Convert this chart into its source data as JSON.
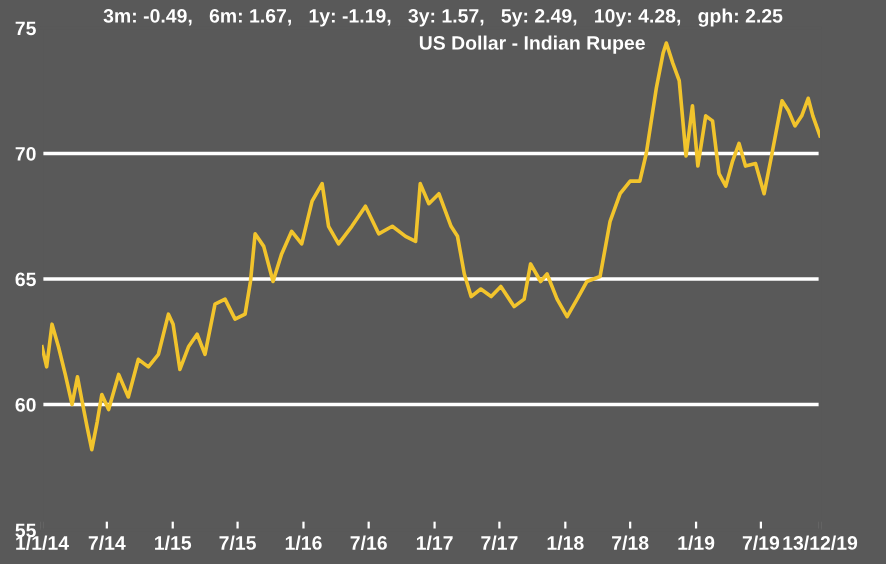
{
  "chart_data": {
    "type": "line",
    "title": "3m: -0.49,   6m: 1.67,   1y: -1.19,   3y: 1.57,   5y: 2.49,   10y: 4.28,   gph: 2.25",
    "subtitle": "US Dollar - Indian Rupee",
    "x": [
      "2014-01-01",
      "2014-01-14",
      "2014-01-29",
      "2014-02-16",
      "2014-03-07",
      "2014-03-26",
      "2014-04-10",
      "2014-04-22",
      "2014-05-07",
      "2014-05-20",
      "2014-06-04",
      "2014-06-17",
      "2014-07-06",
      "2014-08-03",
      "2014-08-30",
      "2014-09-27",
      "2014-10-25",
      "2014-11-22",
      "2014-12-20",
      "2015-01-02",
      "2015-01-21",
      "2015-02-14",
      "2015-03-10",
      "2015-04-01",
      "2015-04-29",
      "2015-05-27",
      "2015-06-24",
      "2015-07-22",
      "2015-08-06",
      "2015-08-19",
      "2015-09-12",
      "2015-10-08",
      "2015-11-01",
      "2015-11-29",
      "2015-12-27",
      "2016-01-25",
      "2016-02-22",
      "2016-03-11",
      "2016-04-08",
      "2016-05-15",
      "2016-06-22",
      "2016-07-29",
      "2016-09-05",
      "2016-10-12",
      "2016-11-09",
      "2016-11-22",
      "2016-12-16",
      "2017-01-13",
      "2017-02-16",
      "2017-03-06",
      "2017-03-25",
      "2017-04-13",
      "2017-05-10",
      "2017-06-08",
      "2017-07-05",
      "2017-08-11",
      "2017-09-08",
      "2017-09-26",
      "2017-10-24",
      "2017-11-11",
      "2017-12-09",
      "2018-01-06",
      "2018-02-03",
      "2018-03-02",
      "2018-04-08",
      "2018-05-06",
      "2018-06-03",
      "2018-07-01",
      "2018-07-28",
      "2018-08-15",
      "2018-09-12",
      "2018-10-01",
      "2018-10-10",
      "2018-10-28",
      "2018-11-15",
      "2018-12-04",
      "2018-12-22",
      "2019-01-06",
      "2019-01-28",
      "2019-02-16",
      "2019-03-06",
      "2019-03-25",
      "2019-04-13",
      "2019-05-01",
      "2019-05-19",
      "2019-06-16",
      "2019-07-10",
      "2019-08-01",
      "2019-08-29",
      "2019-09-16",
      "2019-10-04",
      "2019-10-23",
      "2019-11-10",
      "2019-11-23",
      "2019-12-13"
    ],
    "series": [
      {
        "color": "#f2c42c",
        "values": [
          62.3,
          61.5,
          63.2,
          62.3,
          61.2,
          60.0,
          61.1,
          60.2,
          59.1,
          58.2,
          59.3,
          60.4,
          59.8,
          61.2,
          60.3,
          61.8,
          61.5,
          62.0,
          63.6,
          63.2,
          61.4,
          62.3,
          62.8,
          62.0,
          64.0,
          64.2,
          63.4,
          63.6,
          64.9,
          66.8,
          66.3,
          64.9,
          66.0,
          66.9,
          66.4,
          68.1,
          68.8,
          67.1,
          66.4,
          67.1,
          67.9,
          66.8,
          67.1,
          66.7,
          66.5,
          68.8,
          68.0,
          68.4,
          67.1,
          66.7,
          65.2,
          64.3,
          64.6,
          64.3,
          64.7,
          63.9,
          64.2,
          65.6,
          64.9,
          65.2,
          64.2,
          63.5,
          64.2,
          64.9,
          65.1,
          67.3,
          68.4,
          68.9,
          68.9,
          70.0,
          72.6,
          74.0,
          74.4,
          73.6,
          72.9,
          69.9,
          71.9,
          69.5,
          71.5,
          71.3,
          69.2,
          68.7,
          69.7,
          70.4,
          69.5,
          69.6,
          68.4,
          70.0,
          72.1,
          71.7,
          71.1,
          71.5,
          72.2,
          71.5,
          70.7
        ]
      }
    ],
    "xlim": [
      "2014-01-01",
      "2019-12-13"
    ],
    "xticks": [
      {
        "value": "2014-01-01",
        "label": "1/1/14"
      },
      {
        "value": "2014-07-01",
        "label": "7/14"
      },
      {
        "value": "2015-01-01",
        "label": "1/15"
      },
      {
        "value": "2015-07-01",
        "label": "7/15"
      },
      {
        "value": "2016-01-01",
        "label": "1/16"
      },
      {
        "value": "2016-07-01",
        "label": "7/16"
      },
      {
        "value": "2017-01-01",
        "label": "1/17"
      },
      {
        "value": "2017-07-01",
        "label": "7/17"
      },
      {
        "value": "2018-01-01",
        "label": "1/18"
      },
      {
        "value": "2018-07-01",
        "label": "7/18"
      },
      {
        "value": "2019-01-01",
        "label": "1/19"
      },
      {
        "value": "2019-07-01",
        "label": "7/19"
      },
      {
        "value": "2019-12-13",
        "label": "13/12/19"
      }
    ],
    "ylim": [
      55,
      75
    ],
    "yticks": [
      55,
      60,
      65,
      70,
      75
    ],
    "grid": "y",
    "marker": "none",
    "line_style": "solid"
  }
}
